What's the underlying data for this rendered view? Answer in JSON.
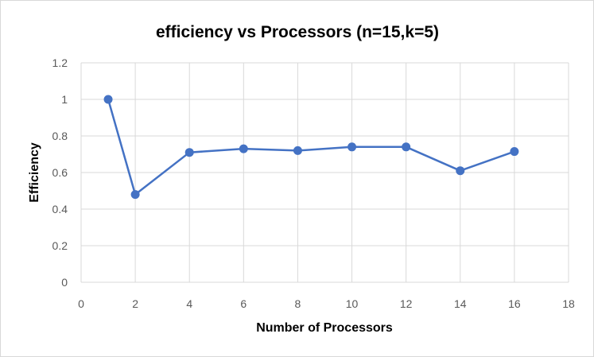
{
  "chart_data": {
    "type": "line",
    "title": "efficiency vs Processors (n=15,k=5)",
    "xlabel": "Number of Processors",
    "ylabel": "Efficiency",
    "xlim": [
      0,
      18
    ],
    "ylim": [
      0,
      1.2
    ],
    "x_ticks": [
      "0",
      "2",
      "4",
      "6",
      "8",
      "10",
      "12",
      "14",
      "16",
      "18"
    ],
    "y_ticks": [
      "0",
      "0.2",
      "0.4",
      "0.6",
      "0.8",
      "1",
      "1.2"
    ],
    "grid": true,
    "legend": "none",
    "series": [
      {
        "x": [
          1,
          2,
          4,
          6,
          8,
          10,
          12,
          14,
          16
        ],
        "values": [
          1.0,
          0.48,
          0.71,
          0.73,
          0.72,
          0.74,
          0.74,
          0.61,
          0.715
        ],
        "color": "#4472C4"
      }
    ],
    "colors": {
      "line": "#4472C4",
      "grid": "#d9d9d9",
      "tick_text": "#595959",
      "title_text": "#000000"
    }
  }
}
